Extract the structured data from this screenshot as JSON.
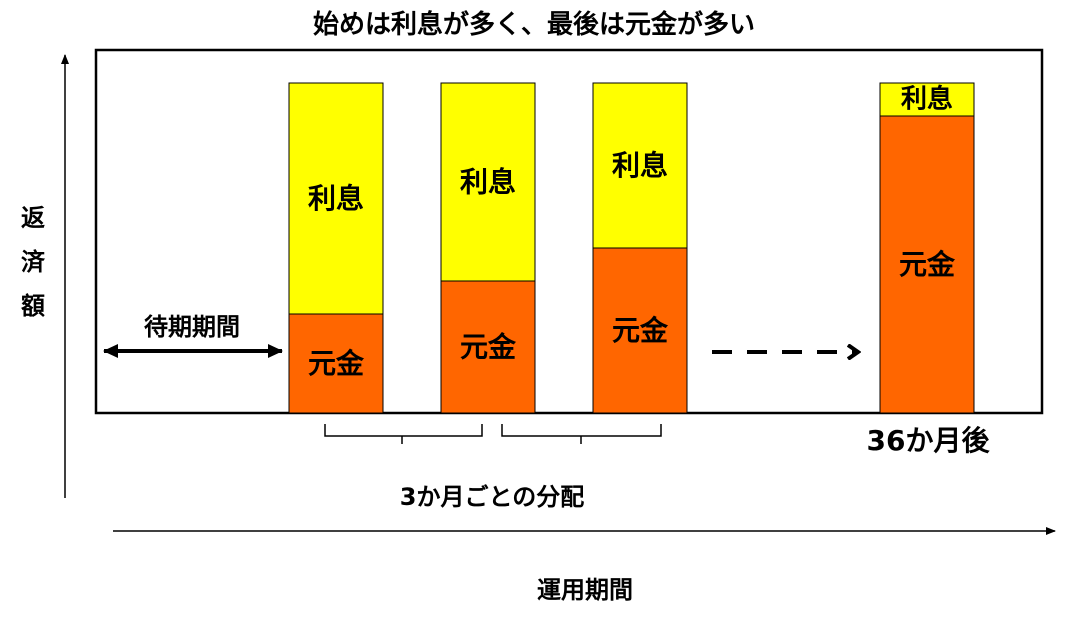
{
  "title": "始めは利息が多く、最後は元金が多い",
  "y_axis_label": "返済額",
  "x_axis_label": "運用期間",
  "waiting_period_label": "待期期間",
  "distribution_label": "3か月ごとの分配",
  "last_bar_label": "36か月後",
  "colors": {
    "interest": "#ffff00",
    "principal": "#ff6600",
    "frame": "#000000"
  },
  "chart_data": {
    "type": "bar",
    "stacked": true,
    "categories": [
      "",
      "",
      "",
      "36か月後"
    ],
    "series": [
      {
        "name": "元金",
        "values": [
          0.3,
          0.4,
          0.5,
          0.9
        ]
      },
      {
        "name": "利息",
        "values": [
          0.7,
          0.6,
          0.5,
          0.1
        ]
      }
    ],
    "ylim": [
      0,
      1
    ],
    "grid": false
  }
}
